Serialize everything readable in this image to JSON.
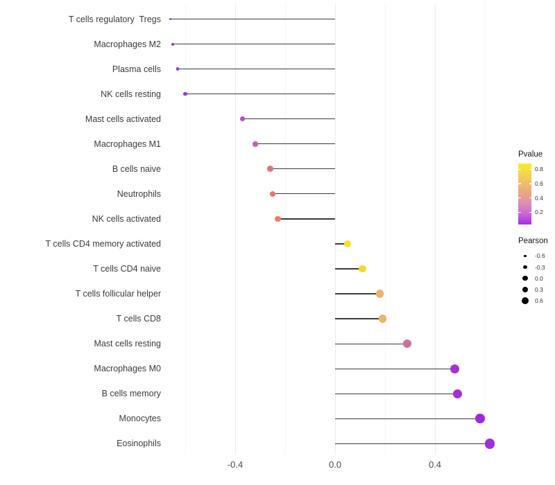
{
  "chart_data": {
    "type": "lollipop",
    "orientation": "horizontal",
    "title": "",
    "xlabel": "",
    "ylabel": "",
    "x_ticks": [
      -0.4,
      0.0,
      0.4
    ],
    "x_tick_labels": [
      "-0.4",
      "0.0",
      "0.4"
    ],
    "xlim": [
      -0.68,
      0.66
    ],
    "grid": {
      "major": [
        -0.4,
        0.0,
        0.4
      ],
      "minor": [
        -0.6,
        -0.2,
        0.2,
        0.6
      ]
    },
    "stem_color": "#3a3a3a",
    "axis_text_color": "#4a4a4a",
    "background": "#ffffff",
    "points": [
      {
        "label": "T cells regulatory  Tregs",
        "pearson": -0.66,
        "color": "#9238DE",
        "diameter": 3.6
      },
      {
        "label": "Macrophages M2",
        "pearson": -0.65,
        "color": "#9238DE",
        "diameter": 4.0
      },
      {
        "label": "Plasma cells",
        "pearson": -0.63,
        "color": "#9B31E1",
        "diameter": 4.4
      },
      {
        "label": "NK cells resting",
        "pearson": -0.6,
        "color": "#9C2FE2",
        "diameter": 5.2
      },
      {
        "label": "Mast cells activated",
        "pearson": -0.37,
        "color": "#B44CC4",
        "diameter": 7.2
      },
      {
        "label": "Macrophages M1",
        "pearson": -0.32,
        "color": "#C75CB3",
        "diameter": 7.6
      },
      {
        "label": "B cells naive",
        "pearson": -0.26,
        "color": "#DC7973",
        "diameter": 8.7
      },
      {
        "label": "Neutrophils",
        "pearson": -0.25,
        "color": "#DC7973",
        "diameter": 8.7
      },
      {
        "label": "NK cells activated",
        "pearson": -0.23,
        "color": "#E28467",
        "diameter": 8.7
      },
      {
        "label": "T cells CD4 memory activated",
        "pearson": 0.05,
        "color": "#F8E51C",
        "diameter": 10.0
      },
      {
        "label": "T cells CD4 naive",
        "pearson": 0.11,
        "color": "#F0DA2A",
        "diameter": 10.6
      },
      {
        "label": "T cells follicular helper",
        "pearson": 0.18,
        "color": "#EEB269",
        "diameter": 11.3
      },
      {
        "label": "T cells CD8",
        "pearson": 0.19,
        "color": "#EEB269",
        "diameter": 11.3
      },
      {
        "label": "Mast cells resting",
        "pearson": 0.29,
        "color": "#D26D9C",
        "diameter": 12.0
      },
      {
        "label": "Macrophages M0",
        "pearson": 0.48,
        "color": "#A630D3",
        "diameter": 13.0
      },
      {
        "label": "B cells memory",
        "pearson": 0.49,
        "color": "#A630D3",
        "diameter": 13.0
      },
      {
        "label": "Monocytes",
        "pearson": 0.58,
        "color": "#9E28DC",
        "diameter": 13.8
      },
      {
        "label": "Eosinophils",
        "pearson": 0.62,
        "color": "#A02CE2",
        "diameter": 14.5
      }
    ],
    "legends": {
      "pvalue": {
        "title": "Pvalue",
        "ticks": [
          "0.8",
          "0.6",
          "0.4",
          "0.2"
        ],
        "gradient_stops": [
          "#F9EE22 0%",
          "#F3CE58 22%",
          "#EBAB7D 45%",
          "#DE8FB2 65%",
          "#C763D6 84%",
          "#A42BE8 100%"
        ]
      },
      "pearson": {
        "title": "Pearson",
        "entries": [
          {
            "label": "-0.6",
            "diameter": 3.6
          },
          {
            "label": "-0.3",
            "diameter": 5.6
          },
          {
            "label": "0.0",
            "diameter": 7.3
          },
          {
            "label": "0.3",
            "diameter": 8.7
          },
          {
            "label": "0.6",
            "diameter": 10.0
          }
        ]
      }
    }
  }
}
